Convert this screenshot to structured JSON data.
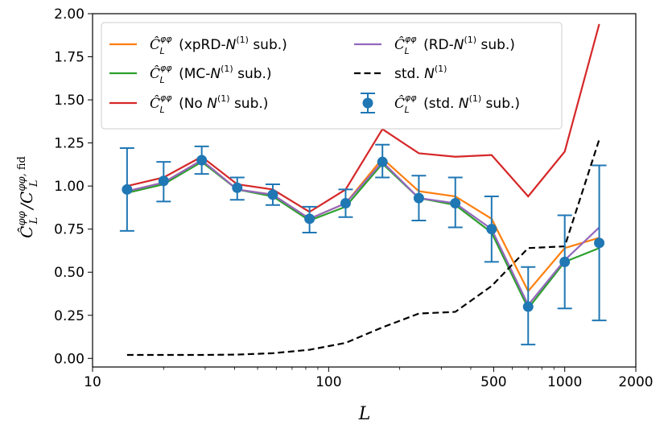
{
  "chart_data": {
    "type": "line",
    "title": "",
    "xlabel": "L",
    "ylabel": "Ĉ_L^{φφ} / C_L^{φφ, fid}",
    "xscale": "log",
    "xlim": [
      10,
      2000
    ],
    "ylim": [
      -0.05,
      2.0
    ],
    "xticks": [
      10,
      100,
      500,
      1000,
      2000
    ],
    "xtick_labels": [
      "10",
      "100",
      "500",
      "1000",
      "2000"
    ],
    "yticks": [
      0.0,
      0.25,
      0.5,
      0.75,
      1.0,
      1.25,
      1.5,
      1.75,
      2.0
    ],
    "ytick_labels": [
      "0.00",
      "0.25",
      "0.50",
      "0.75",
      "1.00",
      "1.25",
      "1.50",
      "1.75",
      "2.00"
    ],
    "x": [
      14,
      20,
      29,
      41,
      58,
      83,
      118,
      169,
      241,
      344,
      490,
      700,
      1000,
      1400
    ],
    "legend_position": "upper-left, two columns",
    "series": [
      {
        "name": "xpRD-N1",
        "label_main": "Ĉ",
        "label_sup": "φφ",
        "label_sub": "L",
        "label_desc_pre": "(xpRD-",
        "label_desc_N": "N",
        "label_desc_Nsup": "(1)",
        "label_desc_post": " sub.)",
        "color": "#ff7f0e",
        "style": "line",
        "values": [
          0.97,
          1.02,
          1.15,
          0.98,
          0.95,
          0.81,
          0.9,
          1.16,
          0.97,
          0.94,
          0.81,
          0.39,
          0.64,
          0.7
        ]
      },
      {
        "name": "MC-N1",
        "label_main": "Ĉ",
        "label_sup": "φφ",
        "label_sub": "L",
        "label_desc_pre": "(MC-",
        "label_desc_N": "N",
        "label_desc_Nsup": "(1)",
        "label_desc_post": " sub.)",
        "color": "#2ca02c",
        "style": "line",
        "values": [
          0.96,
          1.01,
          1.14,
          0.98,
          0.94,
          0.8,
          0.88,
          1.13,
          0.93,
          0.89,
          0.73,
          0.29,
          0.56,
          0.64
        ]
      },
      {
        "name": "No-N1",
        "label_main": "Ĉ",
        "label_sup": "φφ",
        "label_sub": "L",
        "label_desc_pre": "(No ",
        "label_desc_N": "N",
        "label_desc_Nsup": "(1)",
        "label_desc_post": " sub.)",
        "color": "#d62728",
        "style": "line",
        "values": [
          1.0,
          1.05,
          1.17,
          1.01,
          0.98,
          0.85,
          0.98,
          1.33,
          1.19,
          1.17,
          1.18,
          0.94,
          1.2,
          1.94
        ]
      },
      {
        "name": "RD-N1",
        "label_main": "Ĉ",
        "label_sup": "φφ",
        "label_sub": "L",
        "label_desc_pre": "(RD-",
        "label_desc_N": "N",
        "label_desc_Nsup": "(1)",
        "label_desc_post": " sub.)",
        "color": "#9467bd",
        "style": "line",
        "values": [
          0.97,
          1.02,
          1.15,
          0.98,
          0.95,
          0.81,
          0.9,
          1.14,
          0.93,
          0.9,
          0.75,
          0.31,
          0.57,
          0.76
        ]
      },
      {
        "name": "std-N1",
        "label_pre": "std. ",
        "label_N": "N",
        "label_Nsup": "(1)",
        "color": "#000000",
        "style": "dashed",
        "values": [
          0.02,
          0.02,
          0.02,
          0.022,
          0.03,
          0.05,
          0.09,
          0.18,
          0.26,
          0.27,
          0.42,
          0.64,
          0.65,
          1.27
        ]
      },
      {
        "name": "std-N1-sub",
        "label_main": "Ĉ",
        "label_sup": "φφ",
        "label_sub": "L",
        "label_desc_pre": "(std. ",
        "label_desc_N": "N",
        "label_desc_Nsup": "(1)",
        "label_desc_post": " sub.)",
        "color": "#1f77b4",
        "style": "errorbar",
        "values": [
          0.98,
          1.03,
          1.15,
          0.99,
          0.95,
          0.81,
          0.9,
          1.14,
          0.93,
          0.9,
          0.75,
          0.3,
          0.56,
          0.67
        ],
        "err_low": [
          0.74,
          0.91,
          1.07,
          0.92,
          0.89,
          0.73,
          0.82,
          1.05,
          0.8,
          0.76,
          0.56,
          0.08,
          0.29,
          0.22
        ],
        "err_high": [
          1.22,
          1.14,
          1.23,
          1.05,
          1.01,
          0.88,
          0.98,
          1.24,
          1.06,
          1.05,
          0.94,
          0.53,
          0.83,
          1.12
        ]
      }
    ]
  }
}
